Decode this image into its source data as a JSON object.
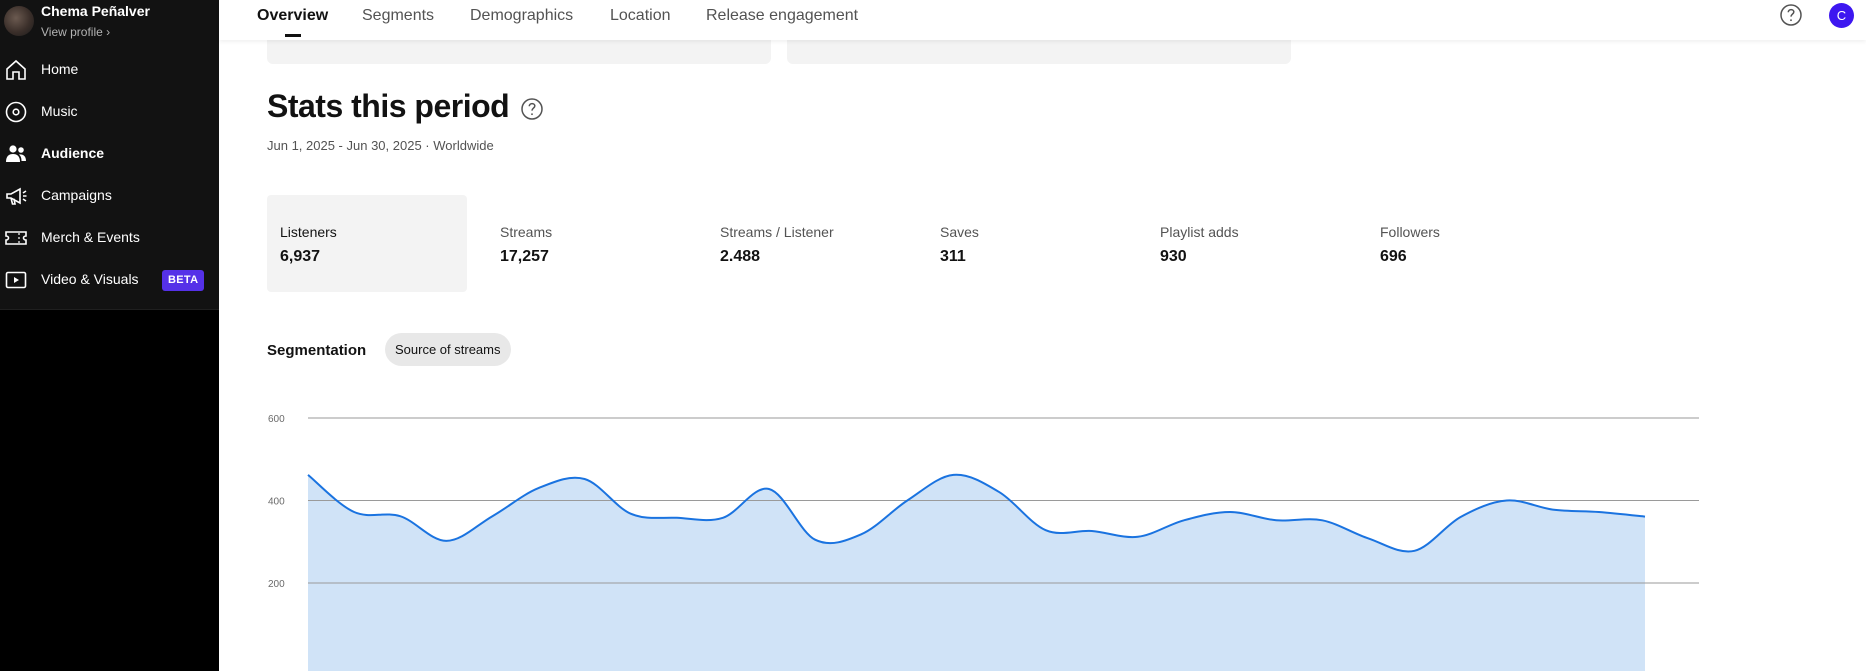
{
  "sidebar": {
    "profile": {
      "name": "Chema Peñalver",
      "link": "View profile ›"
    },
    "items": [
      {
        "label": "Home",
        "icon": "home-icon"
      },
      {
        "label": "Music",
        "icon": "music-disc-icon"
      },
      {
        "label": "Audience",
        "icon": "audience-icon",
        "active": true
      },
      {
        "label": "Campaigns",
        "icon": "megaphone-icon"
      },
      {
        "label": "Merch & Events",
        "icon": "ticket-icon"
      },
      {
        "label": "Video & Visuals",
        "icon": "video-icon",
        "badge": "BETA"
      }
    ]
  },
  "topnav": {
    "tabs": [
      "Overview",
      "Segments",
      "Demographics",
      "Location",
      "Release engagement"
    ],
    "active_tab": "Overview",
    "user_initial": "C"
  },
  "main": {
    "title": "Stats this period",
    "subtitle": "Jun 1, 2025 - Jun 30, 2025 · Worldwide",
    "stats": [
      {
        "label": "Listeners",
        "value": "6,937",
        "selected": true
      },
      {
        "label": "Streams",
        "value": "17,257"
      },
      {
        "label": "Streams / Listener",
        "value": "2.488"
      },
      {
        "label": "Saves",
        "value": "311"
      },
      {
        "label": "Playlist adds",
        "value": "930"
      },
      {
        "label": "Followers",
        "value": "696"
      }
    ],
    "segmentation": {
      "label": "Segmentation",
      "chip": "Source of streams"
    }
  },
  "colors": {
    "accent": "#5531e8",
    "line": "#1a73e0",
    "fill": "#cde1f7",
    "avatar": "#3d17f0"
  },
  "chart_data": {
    "type": "area",
    "y_ticks": [
      "600",
      "400",
      "200"
    ],
    "ylim": [
      0,
      600
    ],
    "values": [
      462,
      372,
      362,
      302,
      362,
      430,
      452,
      368,
      358,
      358,
      428,
      305,
      318,
      400,
      462,
      420,
      328,
      326,
      312,
      352,
      372,
      352,
      352,
      308,
      278,
      360,
      400,
      378,
      372,
      361
    ]
  }
}
